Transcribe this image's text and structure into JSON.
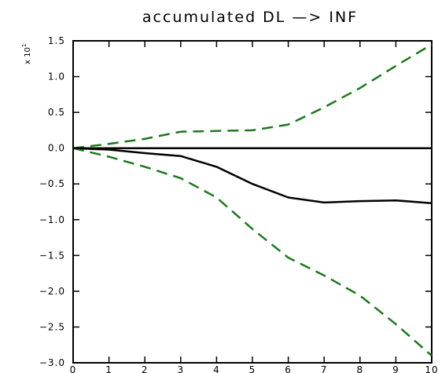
{
  "chart_data": {
    "type": "line",
    "title": "accumulated DL  —>  INF",
    "y_multiplier_base": "x 10",
    "y_multiplier_exp": "1",
    "xlim": [
      0,
      10
    ],
    "ylim": [
      -3.0,
      1.5
    ],
    "x_ticks": [
      "0",
      "1",
      "2",
      "3",
      "4",
      "5",
      "6",
      "7",
      "8",
      "9",
      "10"
    ],
    "y_ticks": [
      "1.5",
      "1.0",
      "0.5",
      "0.0",
      "−0.5",
      "−1.0",
      "−1.5",
      "−2.0",
      "−2.5",
      "−3.0"
    ],
    "x": [
      0,
      1,
      2,
      3,
      4,
      5,
      6,
      7,
      8,
      9,
      10
    ],
    "series": [
      {
        "style": "solid",
        "color": "#000000",
        "values": [
          0,
          -0.02,
          -0.07,
          -0.11,
          -0.26,
          -0.5,
          -0.69,
          -0.76,
          -0.74,
          -0.73,
          -0.77
        ]
      },
      {
        "style": "dashed",
        "color": "#1a7a1a",
        "values": [
          0,
          0.06,
          0.13,
          0.23,
          0.24,
          0.25,
          0.33,
          0.57,
          0.84,
          1.15,
          1.45
        ]
      },
      {
        "style": "dashed",
        "color": "#1a7a1a",
        "values": [
          0,
          -0.12,
          -0.26,
          -0.42,
          -0.69,
          -1.13,
          -1.53,
          -1.78,
          -2.06,
          -2.46,
          -2.9
        ]
      },
      {
        "style": "solid",
        "color": "#000000",
        "values": [
          0,
          0,
          0,
          0,
          0,
          0,
          0,
          0,
          0,
          0,
          0
        ]
      }
    ],
    "grid": false
  }
}
